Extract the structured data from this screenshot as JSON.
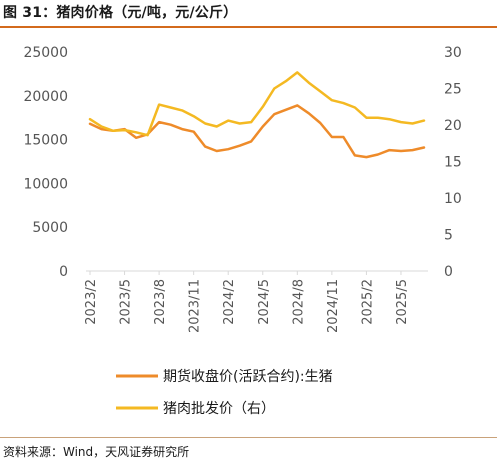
{
  "title": "图 31：猪肉价格（元/吨，元/公斤）",
  "source": "资料来源：Wind，天风证券研究所",
  "chart_data": {
    "type": "line",
    "left_axis": {
      "ticks": [
        0,
        5000,
        10000,
        15000,
        20000,
        25000
      ],
      "labels": [
        "0",
        "5000",
        "10000",
        "15000",
        "20000",
        "25000"
      ],
      "range": [
        0,
        25000
      ]
    },
    "right_axis": {
      "ticks": [
        0,
        5,
        10,
        15,
        20,
        25,
        30
      ],
      "labels": [
        "0",
        "5",
        "10",
        "15",
        "20",
        "25",
        "30"
      ],
      "range": [
        0,
        30
      ]
    },
    "x_ticks": [
      "2023/2",
      "2023/5",
      "2023/8",
      "2023/11",
      "2024/2",
      "2024/5",
      "2024/8",
      "2024/11",
      "2025/2",
      "2025/5"
    ],
    "x_range": [
      "2023/2",
      "2025/7"
    ],
    "series": [
      {
        "name": "期货收盘价(活跃合约):生猪",
        "axis": "left",
        "color": "#ee8b2a",
        "x": [
          "2023/2",
          "2023/3",
          "2023/4",
          "2023/5",
          "2023/6",
          "2023/7",
          "2023/8",
          "2023/9",
          "2023/10",
          "2023/11",
          "2023/12",
          "2024/1",
          "2024/2",
          "2024/3",
          "2024/4",
          "2024/5",
          "2024/6",
          "2024/7",
          "2024/8",
          "2024/9",
          "2024/10",
          "2024/11",
          "2024/12",
          "2025/1",
          "2025/2",
          "2025/3",
          "2025/4",
          "2025/5",
          "2025/6",
          "2025/7"
        ],
        "values": [
          16800,
          16200,
          16000,
          16200,
          15200,
          15600,
          17000,
          16700,
          16200,
          15900,
          14200,
          13700,
          13900,
          14300,
          14800,
          16500,
          17900,
          18400,
          18900,
          18000,
          16900,
          15300,
          15300,
          13200,
          13000,
          13300,
          13800,
          13700,
          13800,
          14100
        ]
      },
      {
        "name": "猪肉批发价（右）",
        "axis": "right",
        "color": "#f4b922",
        "x": [
          "2023/2",
          "2023/3",
          "2023/4",
          "2023/5",
          "2023/6",
          "2023/7",
          "2023/8",
          "2023/9",
          "2023/10",
          "2023/11",
          "2023/12",
          "2024/1",
          "2024/2",
          "2024/3",
          "2024/4",
          "2024/5",
          "2024/6",
          "2024/7",
          "2024/8",
          "2024/9",
          "2024/10",
          "2024/11",
          "2024/12",
          "2025/1",
          "2025/2",
          "2025/3",
          "2025/4",
          "2025/5",
          "2025/6",
          "2025/7"
        ],
        "values": [
          20.8,
          19.8,
          19.2,
          19.3,
          19.0,
          18.6,
          22.8,
          22.4,
          22.0,
          21.2,
          20.2,
          19.8,
          20.6,
          20.2,
          20.4,
          22.5,
          25.0,
          26.0,
          27.2,
          25.8,
          24.6,
          23.4,
          23.0,
          22.4,
          21.0,
          21.0,
          20.8,
          20.4,
          20.2,
          20.6
        ]
      }
    ]
  }
}
